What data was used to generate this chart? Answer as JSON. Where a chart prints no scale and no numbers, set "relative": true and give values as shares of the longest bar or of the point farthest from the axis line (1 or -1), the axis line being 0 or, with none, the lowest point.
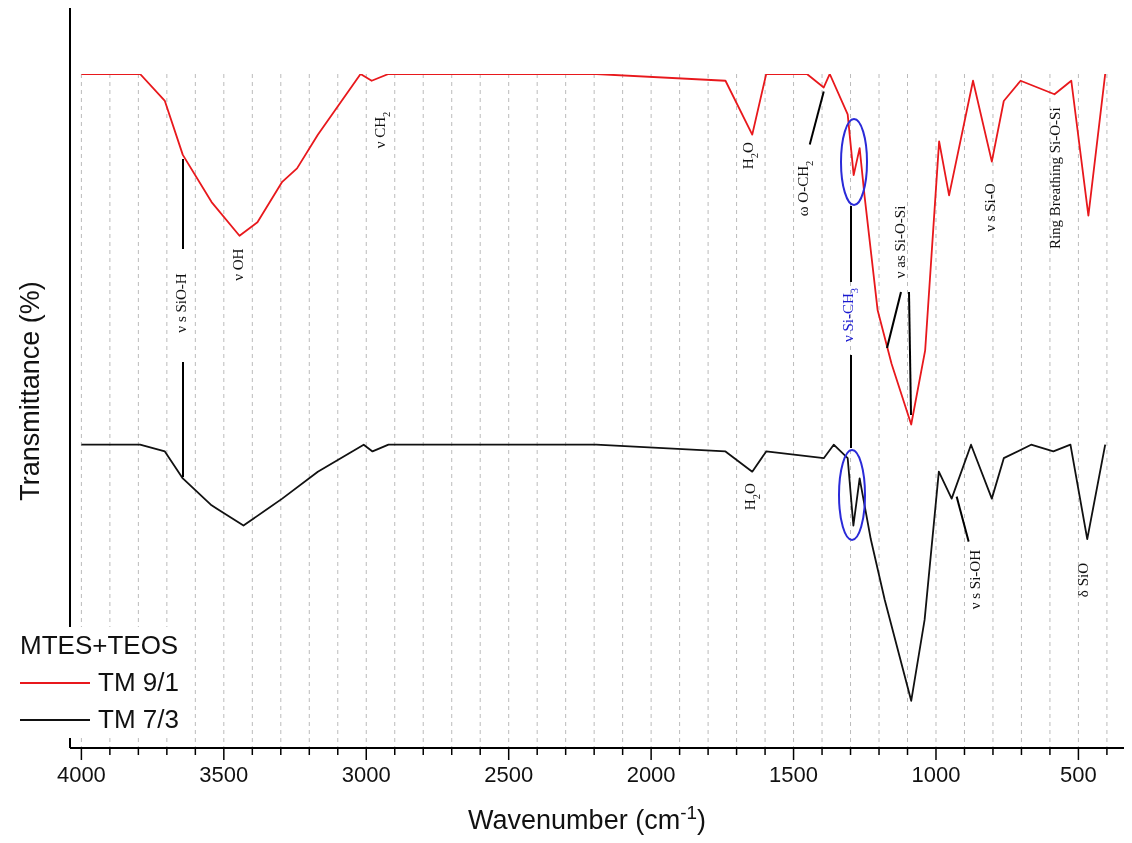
{
  "chart_data": {
    "type": "line",
    "relative": true,
    "xlabel": "Wavenumber (cm$^{-1}$)",
    "ylabel": "Transmittance (%)",
    "legend_title": "MTES+TEOS",
    "legend": "bottom left",
    "grid": "x",
    "marker": "none",
    "line_style": "solid",
    "xlim": [
      4040,
      340
    ],
    "xticks": [
      4000,
      {
        "value": 3900,
        "label": null
      },
      {
        "value": 3800,
        "label": null
      },
      {
        "value": 3700,
        "label": null
      },
      {
        "value": 3600,
        "label": null
      },
      3500,
      {
        "value": 3400,
        "label": null
      },
      {
        "value": 3300,
        "label": null
      },
      {
        "value": 3200,
        "label": null
      },
      {
        "value": 3100,
        "label": null
      },
      3000,
      {
        "value": 2900,
        "label": null
      },
      {
        "value": 2800,
        "label": null
      },
      {
        "value": 2700,
        "label": null
      },
      {
        "value": 2600,
        "label": null
      },
      2500,
      {
        "value": 2400,
        "label": null
      },
      {
        "value": 2300,
        "label": null
      },
      {
        "value": 2200,
        "label": null
      },
      {
        "value": 2100,
        "label": null
      },
      2000,
      {
        "value": 1900,
        "label": null
      },
      {
        "value": 1800,
        "label": null
      },
      {
        "value": 1700,
        "label": null
      },
      {
        "value": 1600,
        "label": null
      },
      1500,
      {
        "value": 1400,
        "label": null
      },
      {
        "value": 1300,
        "label": null
      },
      {
        "value": 1200,
        "label": null
      },
      {
        "value": 1100,
        "label": null
      },
      1000,
      {
        "value": 900,
        "label": null
      },
      {
        "value": 800,
        "label": null
      },
      {
        "value": 700,
        "label": null
      },
      {
        "value": 600,
        "label": null
      },
      500,
      {
        "value": 400,
        "label": null
      }
    ],
    "series": [
      {
        "name": "TM 9/1",
        "color": "#e8181c",
        "x": [
          4000,
          3794,
          3707,
          3644,
          3543,
          3445,
          3382,
          3295,
          3243,
          3170,
          3020,
          2981,
          2922,
          2193,
          1739,
          1645,
          1596,
          1453,
          1394,
          1373,
          1310,
          1289,
          1268,
          1251,
          1205,
          1156,
          1087,
          1038,
          989,
          954,
          870,
          804,
          762,
          703,
          584,
          525,
          465,
          406
        ],
        "values": [
          1.0,
          1.0,
          0.96,
          0.88,
          0.81,
          0.76,
          0.78,
          0.84,
          0.86,
          0.91,
          1.0,
          0.99,
          1.0,
          1.0,
          0.99,
          0.91,
          1.0,
          1.0,
          0.98,
          1.0,
          0.94,
          0.85,
          0.89,
          0.82,
          0.65,
          0.57,
          0.48,
          0.59,
          0.9,
          0.82,
          0.99,
          0.87,
          0.96,
          0.99,
          0.97,
          0.99,
          0.79,
          1.0
        ]
      },
      {
        "name": "TM 7/3",
        "color": "#111111",
        "x": [
          4000,
          3794,
          3707,
          3644,
          3543,
          3431,
          3295,
          3170,
          3009,
          2978,
          2922,
          2193,
          1739,
          1645,
          1596,
          1394,
          1359,
          1310,
          1290,
          1268,
          1229,
          1180,
          1087,
          1040,
          990,
          945,
          877,
          804,
          762,
          666,
          588,
          528,
          469,
          406
        ],
        "values": [
          0.45,
          0.45,
          0.44,
          0.4,
          0.36,
          0.33,
          0.37,
          0.41,
          0.45,
          0.44,
          0.45,
          0.45,
          0.44,
          0.41,
          0.44,
          0.43,
          0.45,
          0.43,
          0.33,
          0.4,
          0.31,
          0.22,
          0.07,
          0.19,
          0.41,
          0.37,
          0.45,
          0.37,
          0.43,
          0.45,
          0.44,
          0.45,
          0.31,
          0.45
        ]
      }
    ],
    "annotations": [
      "ν s SiO-H",
      {
        "text": "ν OH",
        "x": 3445,
        "y": 0.76
      },
      {
        "text": "ν CH$_{2}$",
        "x": 2950,
        "y": 1.0
      },
      {
        "text": "H$_{2}$O",
        "x": 1645,
        "y": 0.91
      },
      {
        "text": "ω O-CH$_{2}$",
        "x": 1394,
        "y": 0.98
      },
      "ν Si-CH$_{3}$",
      "ν as Si-O-Si",
      {
        "text": "ν s Si-O",
        "x": 804,
        "y": 0.87
      },
      {
        "text": "Ring Breathing Si-O-Si",
        "x": 584,
        "y": 0.97
      },
      {
        "text": "H$_{2}$O",
        "x": 1645,
        "y": 0.41
      },
      {
        "text": "ν s Si-OH",
        "x": 945,
        "y": 0.37
      },
      {
        "text": "δ SiO",
        "x": 469,
        "y": 0.31
      }
    ]
  }
}
